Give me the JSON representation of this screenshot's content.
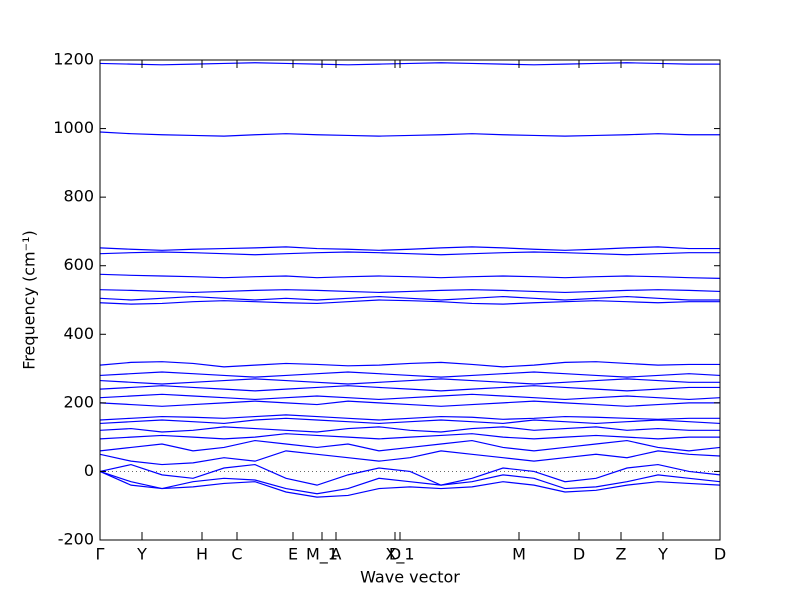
{
  "chart_data": {
    "type": "line",
    "xlabel": "Wave vector",
    "ylabel": "Frequency (cm⁻¹)",
    "x": [
      0,
      0.31,
      0.62,
      0.93,
      1.24,
      1.55,
      1.86,
      2.17,
      2.48,
      2.79,
      3.1,
      3.41,
      3.72,
      4.03,
      4.34,
      4.65,
      4.96,
      5.27,
      5.58,
      5.89,
      6.2
    ],
    "xlim": [
      0,
      6.2
    ],
    "xticks": [
      {
        "value": 0,
        "label": "Γ"
      },
      {
        "value": 0.42,
        "label": "Y"
      },
      {
        "value": 1.02,
        "label": "H"
      },
      {
        "value": 1.37,
        "label": "C"
      },
      {
        "value": 1.93,
        "label": "E"
      },
      {
        "value": 2.22,
        "label": "M_1"
      },
      {
        "value": 2.36,
        "label": "A"
      },
      {
        "value": 2.95,
        "label": "D"
      },
      {
        "value": 3.0,
        "label": "X_1"
      },
      {
        "value": 4.19,
        "label": "M"
      },
      {
        "value": 4.79,
        "label": "D"
      },
      {
        "value": 5.21,
        "label": "Z"
      },
      {
        "value": 5.63,
        "label": "Y"
      },
      {
        "value": 6.2,
        "label": "D"
      }
    ],
    "ylim": [
      -200,
      1200
    ],
    "yticks": [
      -200,
      0,
      200,
      400,
      600,
      800,
      1000,
      1200
    ],
    "grid": false,
    "series": [
      {
        "color": "#0000ff",
        "values": [
          0,
          -40,
          -50,
          -45,
          -35,
          -30,
          -60,
          -75,
          -70,
          -50,
          -45,
          -50,
          -45,
          -30,
          -40,
          -60,
          -55,
          -40,
          -30,
          -35,
          -40
        ]
      },
      {
        "color": "#0000ff",
        "values": [
          0,
          -30,
          -50,
          -30,
          -20,
          -25,
          -50,
          -65,
          -50,
          -20,
          -30,
          -40,
          -30,
          -10,
          -20,
          -50,
          -45,
          -30,
          -10,
          -20,
          -30
        ]
      },
      {
        "color": "#0000ff",
        "values": [
          0,
          20,
          -10,
          -20,
          10,
          20,
          -20,
          -40,
          -10,
          10,
          0,
          -40,
          -20,
          10,
          0,
          -30,
          -20,
          10,
          20,
          0,
          -10
        ]
      },
      {
        "color": "#0000ff",
        "values": [
          50,
          30,
          20,
          25,
          40,
          30,
          60,
          50,
          40,
          30,
          40,
          60,
          50,
          40,
          30,
          40,
          50,
          40,
          60,
          50,
          45
        ]
      },
      {
        "color": "#0000ff",
        "values": [
          60,
          70,
          80,
          60,
          70,
          90,
          80,
          70,
          80,
          60,
          70,
          80,
          90,
          70,
          60,
          70,
          80,
          90,
          70,
          60,
          70
        ]
      },
      {
        "color": "#0000ff",
        "values": [
          95,
          100,
          105,
          100,
          95,
          100,
          110,
          105,
          100,
          95,
          100,
          105,
          110,
          100,
          95,
          100,
          105,
          100,
          95,
          100,
          100
        ]
      },
      {
        "color": "#0000ff",
        "values": [
          120,
          125,
          115,
          120,
          130,
          125,
          120,
          115,
          125,
          130,
          120,
          115,
          125,
          130,
          120,
          125,
          130,
          120,
          125,
          120,
          120
        ]
      },
      {
        "color": "#0000ff",
        "values": [
          140,
          145,
          150,
          145,
          140,
          150,
          155,
          150,
          145,
          140,
          145,
          150,
          145,
          140,
          150,
          145,
          140,
          145,
          150,
          145,
          140
        ]
      },
      {
        "color": "#0000ff",
        "values": [
          150,
          155,
          160,
          158,
          155,
          160,
          165,
          160,
          155,
          150,
          155,
          160,
          158,
          152,
          155,
          160,
          158,
          155,
          152,
          155,
          155
        ]
      },
      {
        "color": "#0000ff",
        "values": [
          200,
          195,
          190,
          195,
          200,
          205,
          200,
          195,
          205,
          200,
          195,
          190,
          195,
          200,
          205,
          200,
          195,
          190,
          195,
          200,
          200
        ]
      },
      {
        "color": "#0000ff",
        "values": [
          215,
          220,
          225,
          220,
          215,
          210,
          215,
          220,
          215,
          210,
          215,
          220,
          225,
          220,
          215,
          210,
          215,
          220,
          215,
          210,
          215
        ]
      },
      {
        "color": "#0000ff",
        "values": [
          240,
          245,
          250,
          245,
          240,
          235,
          240,
          245,
          250,
          245,
          240,
          235,
          240,
          245,
          250,
          245,
          240,
          235,
          240,
          245,
          245
        ]
      },
      {
        "color": "#0000ff",
        "values": [
          265,
          260,
          255,
          260,
          265,
          270,
          265,
          260,
          255,
          260,
          265,
          270,
          265,
          260,
          255,
          260,
          265,
          270,
          265,
          260,
          260
        ]
      },
      {
        "color": "#0000ff",
        "values": [
          280,
          285,
          290,
          285,
          280,
          275,
          280,
          285,
          290,
          285,
          280,
          275,
          280,
          285,
          290,
          285,
          280,
          275,
          280,
          285,
          280
        ]
      },
      {
        "color": "#0000ff",
        "values": [
          310,
          318,
          320,
          315,
          305,
          310,
          315,
          312,
          308,
          310,
          315,
          318,
          312,
          305,
          310,
          318,
          320,
          315,
          310,
          312,
          312
        ]
      },
      {
        "color": "#0000ff",
        "values": [
          492,
          488,
          490,
          495,
          498,
          495,
          492,
          490,
          495,
          500,
          498,
          495,
          490,
          488,
          492,
          495,
          498,
          495,
          492,
          495,
          495
        ]
      },
      {
        "color": "#0000ff",
        "values": [
          505,
          500,
          505,
          510,
          505,
          500,
          505,
          500,
          505,
          510,
          505,
          500,
          505,
          510,
          505,
          500,
          505,
          510,
          505,
          500,
          500
        ]
      },
      {
        "color": "#0000ff",
        "values": [
          530,
          528,
          525,
          522,
          525,
          528,
          530,
          528,
          525,
          522,
          525,
          528,
          530,
          528,
          525,
          522,
          525,
          528,
          530,
          528,
          525
        ]
      },
      {
        "color": "#0000ff",
        "values": [
          575,
          572,
          570,
          568,
          565,
          568,
          570,
          565,
          568,
          570,
          568,
          565,
          568,
          570,
          568,
          565,
          568,
          570,
          568,
          565,
          563
        ]
      },
      {
        "color": "#0000ff",
        "values": [
          635,
          638,
          640,
          638,
          635,
          632,
          635,
          638,
          640,
          638,
          635,
          632,
          635,
          638,
          640,
          638,
          635,
          632,
          635,
          638,
          638
        ]
      },
      {
        "color": "#0000ff",
        "values": [
          652,
          648,
          645,
          648,
          650,
          652,
          655,
          650,
          648,
          645,
          648,
          652,
          655,
          652,
          648,
          645,
          648,
          652,
          655,
          650,
          650
        ]
      },
      {
        "color": "#0000ff",
        "values": [
          990,
          985,
          982,
          980,
          978,
          982,
          985,
          982,
          980,
          978,
          980,
          982,
          985,
          982,
          980,
          978,
          980,
          982,
          985,
          982,
          982
        ]
      },
      {
        "color": "#0000ff",
        "values": [
          1190,
          1188,
          1186,
          1188,
          1190,
          1192,
          1190,
          1188,
          1186,
          1188,
          1190,
          1192,
          1190,
          1188,
          1186,
          1188,
          1190,
          1192,
          1190,
          1188,
          1188
        ]
      }
    ]
  }
}
